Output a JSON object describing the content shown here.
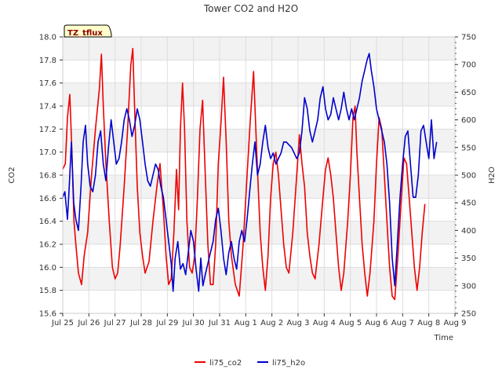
{
  "chart_data": {
    "type": "line",
    "title": "Tower CO2 and H2O",
    "tag": "TZ_tflux",
    "xlabel": "Time",
    "ylabel_left": "CO2",
    "ylabel_right": "H2O",
    "x_ticks": [
      "Jul 25",
      "Jul 26",
      "Jul 27",
      "Jul 28",
      "Jul 29",
      "Jul 30",
      "Jul 31",
      "Aug 1",
      "Aug 2",
      "Aug 3",
      "Aug 4",
      "Aug 5",
      "Aug 6",
      "Aug 7",
      "Aug 8",
      "Aug 9"
    ],
    "xlim": [
      0,
      15
    ],
    "ylim_left": [
      15.6,
      18.0
    ],
    "yticks_left": [
      "15.6",
      "15.8",
      "16.0",
      "16.2",
      "16.4",
      "16.6",
      "16.8",
      "17.0",
      "17.2",
      "17.4",
      "17.6",
      "17.8",
      "18.0"
    ],
    "ylim_right": [
      250,
      750
    ],
    "yticks_right": [
      "250",
      "300",
      "350",
      "400",
      "450",
      "500",
      "550",
      "600",
      "650",
      "700",
      "750"
    ],
    "grid": true,
    "legend_position": "bottom-center",
    "series": [
      {
        "name": "li75_co2",
        "color": "#ee0000",
        "axis": "left",
        "points": [
          [
            0.0,
            16.85
          ],
          [
            0.1,
            16.9
          ],
          [
            0.18,
            17.3
          ],
          [
            0.27,
            17.5
          ],
          [
            0.35,
            17.0
          ],
          [
            0.43,
            16.4
          ],
          [
            0.5,
            16.2
          ],
          [
            0.6,
            15.95
          ],
          [
            0.72,
            15.85
          ],
          [
            0.82,
            16.1
          ],
          [
            0.95,
            16.3
          ],
          [
            1.1,
            16.8
          ],
          [
            1.25,
            17.2
          ],
          [
            1.4,
            17.55
          ],
          [
            1.48,
            17.85
          ],
          [
            1.55,
            17.4
          ],
          [
            1.65,
            16.9
          ],
          [
            1.78,
            16.4
          ],
          [
            1.9,
            16.0
          ],
          [
            2.0,
            15.9
          ],
          [
            2.1,
            15.95
          ],
          [
            2.2,
            16.2
          ],
          [
            2.35,
            16.7
          ],
          [
            2.48,
            17.2
          ],
          [
            2.6,
            17.75
          ],
          [
            2.68,
            17.9
          ],
          [
            2.76,
            17.3
          ],
          [
            2.85,
            16.7
          ],
          [
            2.95,
            16.3
          ],
          [
            3.05,
            16.1
          ],
          [
            3.15,
            15.95
          ],
          [
            3.3,
            16.05
          ],
          [
            3.45,
            16.4
          ],
          [
            3.6,
            16.7
          ],
          [
            3.72,
            16.9
          ],
          [
            3.85,
            16.5
          ],
          [
            3.95,
            16.1
          ],
          [
            4.05,
            15.85
          ],
          [
            4.15,
            15.9
          ],
          [
            4.25,
            16.3
          ],
          [
            4.35,
            16.85
          ],
          [
            4.43,
            16.5
          ],
          [
            4.5,
            17.2
          ],
          [
            4.58,
            17.6
          ],
          [
            4.66,
            17.2
          ],
          [
            4.75,
            16.4
          ],
          [
            4.85,
            16.0
          ],
          [
            4.95,
            15.95
          ],
          [
            5.05,
            16.1
          ],
          [
            5.15,
            16.6
          ],
          [
            5.25,
            17.2
          ],
          [
            5.35,
            17.45
          ],
          [
            5.45,
            16.8
          ],
          [
            5.55,
            16.2
          ],
          [
            5.65,
            15.85
          ],
          [
            5.75,
            15.85
          ],
          [
            5.85,
            16.2
          ],
          [
            5.95,
            16.9
          ],
          [
            6.05,
            17.25
          ],
          [
            6.15,
            17.65
          ],
          [
            6.25,
            17.1
          ],
          [
            6.35,
            16.4
          ],
          [
            6.45,
            16.1
          ],
          [
            6.6,
            15.85
          ],
          [
            6.75,
            15.75
          ],
          [
            6.9,
            16.2
          ],
          [
            7.05,
            16.8
          ],
          [
            7.18,
            17.3
          ],
          [
            7.3,
            17.7
          ],
          [
            7.42,
            17.0
          ],
          [
            7.55,
            16.3
          ],
          [
            7.65,
            16.0
          ],
          [
            7.75,
            15.8
          ],
          [
            7.85,
            16.1
          ],
          [
            7.95,
            16.6
          ],
          [
            8.05,
            16.9
          ],
          [
            8.15,
            17.0
          ],
          [
            8.25,
            16.8
          ],
          [
            8.35,
            16.5
          ],
          [
            8.45,
            16.2
          ],
          [
            8.55,
            16.0
          ],
          [
            8.65,
            15.95
          ],
          [
            8.8,
            16.3
          ],
          [
            8.95,
            16.8
          ],
          [
            9.05,
            17.15
          ],
          [
            9.15,
            16.9
          ],
          [
            9.25,
            16.7
          ],
          [
            9.35,
            16.3
          ],
          [
            9.45,
            16.1
          ],
          [
            9.55,
            15.95
          ],
          [
            9.65,
            15.9
          ],
          [
            9.8,
            16.2
          ],
          [
            9.95,
            16.6
          ],
          [
            10.05,
            16.85
          ],
          [
            10.15,
            16.95
          ],
          [
            10.25,
            16.8
          ],
          [
            10.35,
            16.6
          ],
          [
            10.45,
            16.3
          ],
          [
            10.55,
            16.0
          ],
          [
            10.65,
            15.8
          ],
          [
            10.75,
            15.95
          ],
          [
            10.9,
            16.4
          ],
          [
            11.0,
            16.8
          ],
          [
            11.1,
            17.3
          ],
          [
            11.18,
            17.4
          ],
          [
            11.25,
            17.0
          ],
          [
            11.35,
            16.6
          ],
          [
            11.45,
            16.2
          ],
          [
            11.55,
            15.95
          ],
          [
            11.65,
            15.75
          ],
          [
            11.75,
            15.95
          ],
          [
            11.9,
            16.4
          ],
          [
            12.0,
            16.9
          ],
          [
            12.1,
            17.3
          ],
          [
            12.2,
            17.2
          ],
          [
            12.3,
            16.8
          ],
          [
            12.4,
            16.4
          ],
          [
            12.5,
            16.0
          ],
          [
            12.6,
            15.75
          ],
          [
            12.7,
            15.72
          ],
          [
            12.82,
            16.1
          ],
          [
            12.95,
            16.6
          ],
          [
            13.05,
            16.95
          ],
          [
            13.15,
            16.9
          ],
          [
            13.25,
            16.6
          ],
          [
            13.35,
            16.3
          ],
          [
            13.45,
            16.0
          ],
          [
            13.55,
            15.8
          ],
          [
            13.65,
            16.0
          ],
          [
            13.75,
            16.3
          ],
          [
            13.85,
            16.55
          ]
        ]
      },
      {
        "name": "li75_h2o",
        "color": "#0000cc",
        "axis": "right",
        "points": [
          [
            0.0,
            460
          ],
          [
            0.08,
            470
          ],
          [
            0.18,
            420
          ],
          [
            0.25,
            480
          ],
          [
            0.33,
            560
          ],
          [
            0.42,
            450
          ],
          [
            0.5,
            420
          ],
          [
            0.6,
            400
          ],
          [
            0.7,
            480
          ],
          [
            0.78,
            560
          ],
          [
            0.87,
            590
          ],
          [
            0.95,
            520
          ],
          [
            1.05,
            480
          ],
          [
            1.15,
            470
          ],
          [
            1.25,
            500
          ],
          [
            1.35,
            560
          ],
          [
            1.45,
            580
          ],
          [
            1.55,
            520
          ],
          [
            1.65,
            490
          ],
          [
            1.75,
            550
          ],
          [
            1.85,
            600
          ],
          [
            1.95,
            560
          ],
          [
            2.05,
            520
          ],
          [
            2.15,
            530
          ],
          [
            2.25,
            560
          ],
          [
            2.35,
            600
          ],
          [
            2.45,
            620
          ],
          [
            2.55,
            600
          ],
          [
            2.65,
            570
          ],
          [
            2.75,
            590
          ],
          [
            2.85,
            620
          ],
          [
            2.95,
            600
          ],
          [
            3.05,
            560
          ],
          [
            3.15,
            520
          ],
          [
            3.25,
            490
          ],
          [
            3.35,
            480
          ],
          [
            3.45,
            500
          ],
          [
            3.55,
            520
          ],
          [
            3.65,
            510
          ],
          [
            3.75,
            480
          ],
          [
            3.85,
            460
          ],
          [
            3.95,
            420
          ],
          [
            4.05,
            380
          ],
          [
            4.15,
            340
          ],
          [
            4.22,
            290
          ],
          [
            4.3,
            350
          ],
          [
            4.4,
            380
          ],
          [
            4.5,
            330
          ],
          [
            4.6,
            340
          ],
          [
            4.7,
            320
          ],
          [
            4.8,
            360
          ],
          [
            4.9,
            400
          ],
          [
            5.0,
            380
          ],
          [
            5.1,
            330
          ],
          [
            5.2,
            290
          ],
          [
            5.28,
            350
          ],
          [
            5.36,
            300
          ],
          [
            5.45,
            320
          ],
          [
            5.55,
            340
          ],
          [
            5.65,
            360
          ],
          [
            5.75,
            380
          ],
          [
            5.85,
            420
          ],
          [
            5.95,
            440
          ],
          [
            6.05,
            400
          ],
          [
            6.15,
            350
          ],
          [
            6.25,
            320
          ],
          [
            6.35,
            360
          ],
          [
            6.45,
            380
          ],
          [
            6.55,
            350
          ],
          [
            6.65,
            330
          ],
          [
            6.75,
            380
          ],
          [
            6.85,
            400
          ],
          [
            6.95,
            380
          ],
          [
            7.05,
            420
          ],
          [
            7.15,
            470
          ],
          [
            7.25,
            520
          ],
          [
            7.35,
            560
          ],
          [
            7.45,
            500
          ],
          [
            7.55,
            520
          ],
          [
            7.65,
            560
          ],
          [
            7.75,
            590
          ],
          [
            7.85,
            550
          ],
          [
            7.95,
            530
          ],
          [
            8.05,
            540
          ],
          [
            8.15,
            520
          ],
          [
            8.25,
            530
          ],
          [
            8.35,
            540
          ],
          [
            8.45,
            560
          ],
          [
            8.55,
            560
          ],
          [
            8.65,
            555
          ],
          [
            8.75,
            550
          ],
          [
            8.85,
            540
          ],
          [
            8.95,
            530
          ],
          [
            9.05,
            540
          ],
          [
            9.15,
            580
          ],
          [
            9.25,
            640
          ],
          [
            9.35,
            620
          ],
          [
            9.45,
            580
          ],
          [
            9.55,
            560
          ],
          [
            9.65,
            580
          ],
          [
            9.75,
            600
          ],
          [
            9.85,
            640
          ],
          [
            9.95,
            660
          ],
          [
            10.05,
            620
          ],
          [
            10.15,
            600
          ],
          [
            10.25,
            610
          ],
          [
            10.35,
            640
          ],
          [
            10.45,
            620
          ],
          [
            10.55,
            600
          ],
          [
            10.65,
            620
          ],
          [
            10.75,
            650
          ],
          [
            10.85,
            620
          ],
          [
            10.95,
            600
          ],
          [
            11.05,
            620
          ],
          [
            11.15,
            600
          ],
          [
            11.25,
            620
          ],
          [
            11.35,
            640
          ],
          [
            11.45,
            670
          ],
          [
            11.55,
            690
          ],
          [
            11.65,
            710
          ],
          [
            11.72,
            720
          ],
          [
            11.8,
            690
          ],
          [
            11.9,
            660
          ],
          [
            12.0,
            620
          ],
          [
            12.1,
            600
          ],
          [
            12.2,
            580
          ],
          [
            12.3,
            560
          ],
          [
            12.4,
            520
          ],
          [
            12.5,
            450
          ],
          [
            12.6,
            350
          ],
          [
            12.7,
            300
          ],
          [
            12.8,
            380
          ],
          [
            12.9,
            460
          ],
          [
            13.0,
            520
          ],
          [
            13.1,
            570
          ],
          [
            13.2,
            580
          ],
          [
            13.3,
            520
          ],
          [
            13.4,
            460
          ],
          [
            13.5,
            460
          ],
          [
            13.6,
            500
          ],
          [
            13.7,
            580
          ],
          [
            13.8,
            590
          ],
          [
            13.9,
            560
          ],
          [
            14.0,
            530
          ],
          [
            14.1,
            600
          ],
          [
            14.2,
            530
          ],
          [
            14.3,
            560
          ]
        ]
      }
    ]
  }
}
